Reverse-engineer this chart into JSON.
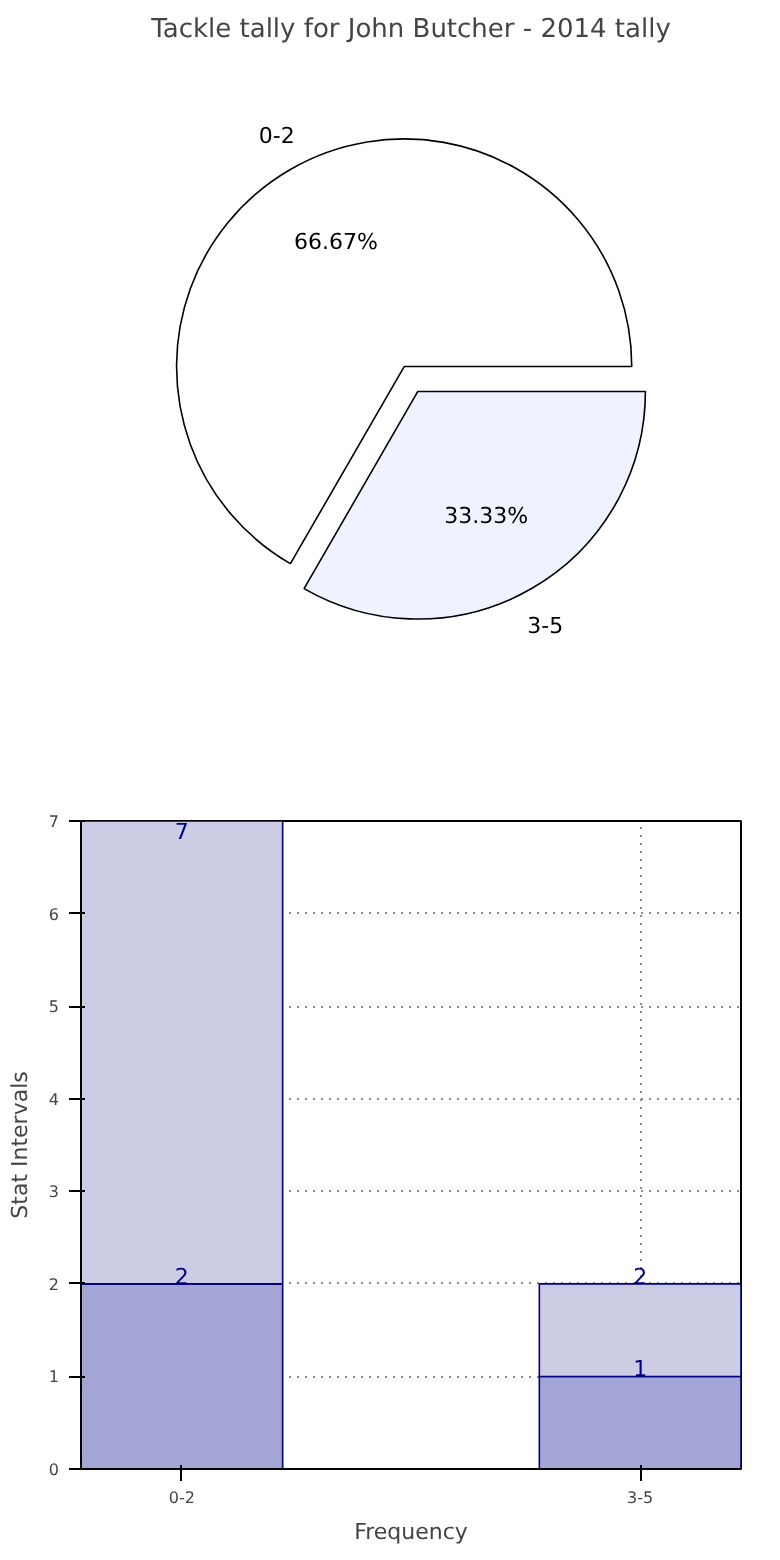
{
  "chart_data": [
    {
      "type": "pie",
      "title": "Tackle tally for John Butcher - 2014 tally",
      "categories": [
        "0-2",
        "3-5"
      ],
      "values": [
        66.67,
        33.33
      ],
      "value_labels": [
        "66.67%",
        "33.33%"
      ],
      "colors": [
        "#ffffff",
        "#eef3ff"
      ]
    },
    {
      "type": "bar",
      "stacked": true,
      "categories": [
        "0-2",
        "3-5"
      ],
      "xlabel": "Frequency",
      "ylabel": "Stat Intervals",
      "ylim": [
        0,
        7
      ],
      "yticks": [
        0,
        1,
        2,
        3,
        4,
        5,
        6,
        7
      ],
      "grid": true,
      "totals": [
        "7",
        "2"
      ],
      "series": [
        {
          "color": "#a3a6d4",
          "values": [
            2,
            1
          ],
          "value_labels": [
            "2",
            "1"
          ]
        },
        {
          "color": "#ccccE5",
          "values": [
            5,
            1
          ]
        }
      ]
    }
  ]
}
